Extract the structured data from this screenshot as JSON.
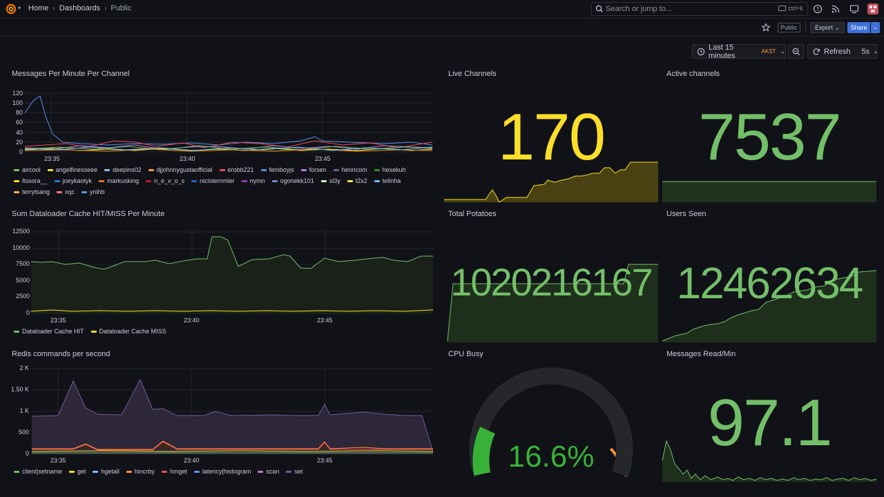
{
  "topbar": {
    "breadcrumb": [
      "Home",
      "Dashboards",
      "Public"
    ],
    "search_placeholder": "Search or jump to...",
    "search_shortcut": "ctrl+k"
  },
  "subbar": {
    "public_badge": "Public",
    "export_label": "Export",
    "share_label": "Share"
  },
  "controls": {
    "time_range": "Last 15 minutes",
    "timezone": "AKST",
    "refresh_label": "Refresh",
    "refresh_interval": "5s"
  },
  "colors": {
    "accent_blue": "#3d71d9",
    "yellow": "#fade2a",
    "green": "#73bf69",
    "orange": "#ff9830",
    "red": "#f2495c"
  },
  "panels": {
    "messages_per_minute": {
      "title": "Messages Per Minute Per Channel",
      "yticks": [
        "120",
        "100",
        "80",
        "60",
        "40",
        "20",
        "0"
      ],
      "xticks": [
        "23:35",
        "23:40",
        "23:45"
      ],
      "legend": [
        {
          "name": "aircool",
          "color": "#73bf69"
        },
        {
          "name": "angelfinesseee",
          "color": "#fade2a"
        },
        {
          "name": "deepins02",
          "color": "#8ab8ff"
        },
        {
          "name": "djjohnnygustaofficial",
          "color": "#ff9830"
        },
        {
          "name": "erobb221",
          "color": "#f2495c"
        },
        {
          "name": "femboyjs",
          "color": "#5794f2"
        },
        {
          "name": "forsen",
          "color": "#b877d9"
        },
        {
          "name": "henricom",
          "color": "#705da0"
        },
        {
          "name": "hexekuh",
          "color": "#37872d"
        },
        {
          "name": "ltssora__",
          "color": "#fade2a"
        },
        {
          "name": "joeykaotyk",
          "color": "#3274d9"
        },
        {
          "name": "markusking",
          "color": "#e0752d"
        },
        {
          "name": "n_e_v_o_s",
          "color": "#c4162a"
        },
        {
          "name": "nicistemmler",
          "color": "#1f60c4"
        },
        {
          "name": "nymn",
          "color": "#8f3bb8"
        },
        {
          "name": "ogonekk101",
          "color": "#6e8fd0"
        },
        {
          "name": "sl3y",
          "color": "#c8f2c2"
        },
        {
          "name": "t2x2",
          "color": "#ffee52"
        },
        {
          "name": "telinha",
          "color": "#5ec3f2"
        },
        {
          "name": "terrytsang",
          "color": "#ffb357"
        },
        {
          "name": "xqc",
          "color": "#ff7383"
        },
        {
          "name": "ynihb",
          "color": "#5794f2"
        }
      ]
    },
    "live_channels": {
      "title": "Live Channels",
      "value": "170"
    },
    "active_channels": {
      "title": "Active channels",
      "value": "7537"
    },
    "dataloader": {
      "title": "Sum Dataloader Cache HIT/MISS Per Minute",
      "yticks": [
        "12500",
        "10000",
        "7500",
        "5000",
        "2500",
        "0"
      ],
      "xticks": [
        "23:35",
        "23:40",
        "23:45"
      ],
      "legend": [
        {
          "name": "Dataloader Cache HIT",
          "color": "#73bf69"
        },
        {
          "name": "Dataloader Cache MISS",
          "color": "#fade2a"
        }
      ]
    },
    "total_potatoes": {
      "title": "Total Potatoes",
      "value": "1020216167"
    },
    "users_seen": {
      "title": "Users Seen",
      "value": "12462634"
    },
    "redis": {
      "title": "Redis commands per second",
      "yticks": [
        "2 K",
        "1.50 K",
        "1 K",
        "500",
        "0"
      ],
      "xticks": [
        "23:35",
        "23:40",
        "23:45"
      ],
      "legend": [
        {
          "name": "client|setname",
          "color": "#73bf69"
        },
        {
          "name": "get",
          "color": "#fade2a"
        },
        {
          "name": "hgetall",
          "color": "#8ab8ff"
        },
        {
          "name": "hincrby",
          "color": "#ff9830"
        },
        {
          "name": "hmget",
          "color": "#f2495c"
        },
        {
          "name": "latency|histogram",
          "color": "#5794f2"
        },
        {
          "name": "scan",
          "color": "#b877d9"
        },
        {
          "name": "set",
          "color": "#705da0"
        }
      ]
    },
    "cpu_busy": {
      "title": "CPU Busy",
      "value": "16.6%",
      "percent": 16.6
    },
    "messages_read": {
      "title": "Messages Read/Min",
      "value": "97.1"
    }
  }
}
